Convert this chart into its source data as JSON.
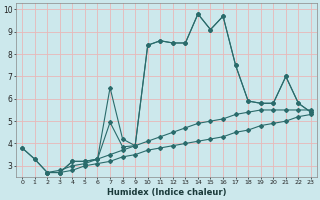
{
  "xlabel": "Humidex (Indice chaleur)",
  "bg_color": "#cce8ec",
  "grid_color": "#e8b8b8",
  "line_color": "#2a6b6b",
  "xlim": [
    -0.5,
    23.5
  ],
  "ylim": [
    2.5,
    10.3
  ],
  "xticks": [
    0,
    1,
    2,
    3,
    4,
    5,
    6,
    7,
    8,
    9,
    10,
    11,
    12,
    13,
    14,
    15,
    16,
    17,
    18,
    19,
    20,
    21,
    22,
    23
  ],
  "yticks": [
    3,
    4,
    5,
    6,
    7,
    8,
    9,
    10
  ],
  "lines": [
    {
      "x": [
        0,
        1,
        2,
        3,
        4,
        5,
        6,
        7,
        8,
        9,
        10,
        11,
        12,
        13,
        14,
        15,
        16,
        17,
        18,
        19,
        20,
        21,
        22,
        23
      ],
      "y": [
        3.8,
        3.3,
        2.7,
        2.7,
        2.8,
        3.0,
        3.1,
        3.2,
        3.4,
        3.5,
        3.7,
        3.8,
        3.9,
        4.0,
        4.1,
        4.2,
        4.3,
        4.5,
        4.6,
        4.8,
        4.9,
        5.0,
        5.2,
        5.3
      ]
    },
    {
      "x": [
        0,
        1,
        2,
        3,
        4,
        5,
        6,
        7,
        8,
        9,
        10,
        11,
        12,
        13,
        14,
        15,
        16,
        17,
        18,
        19,
        20,
        21,
        22,
        23
      ],
      "y": [
        3.8,
        3.3,
        2.7,
        2.8,
        3.0,
        3.1,
        3.3,
        3.5,
        3.7,
        3.9,
        4.1,
        4.3,
        4.5,
        4.7,
        4.9,
        5.0,
        5.1,
        5.3,
        5.4,
        5.5,
        5.5,
        5.5,
        5.5,
        5.5
      ]
    },
    {
      "x": [
        2,
        3,
        4,
        5,
        6,
        7,
        8,
        9,
        10,
        11,
        12,
        13,
        14,
        15,
        16,
        17,
        18,
        19,
        20,
        21,
        22,
        23
      ],
      "y": [
        2.7,
        2.7,
        3.2,
        3.2,
        3.3,
        6.5,
        4.2,
        3.9,
        8.4,
        8.6,
        8.5,
        8.5,
        9.8,
        9.1,
        9.7,
        7.5,
        5.9,
        5.8,
        5.8,
        7.0,
        5.8,
        5.4
      ]
    },
    {
      "x": [
        2,
        3,
        4,
        5,
        6,
        7,
        8,
        9,
        10,
        11,
        12,
        13,
        14,
        15,
        16,
        17,
        18,
        19,
        20,
        21,
        22,
        23
      ],
      "y": [
        2.7,
        2.7,
        3.2,
        3.2,
        3.3,
        4.95,
        3.85,
        3.9,
        8.4,
        8.6,
        8.5,
        8.5,
        9.8,
        9.1,
        9.7,
        7.5,
        5.9,
        5.8,
        5.8,
        7.0,
        5.8,
        5.4
      ]
    }
  ]
}
